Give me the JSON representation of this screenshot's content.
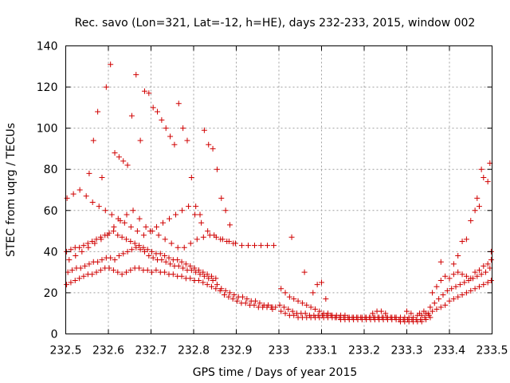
{
  "chart_data": {
    "type": "scatter",
    "title": "Rec. savo (Lon=321, Lat=-12, h=HE), days 232-233, 2015, window 002",
    "xlabel": "GPS time / Days of year 2015",
    "ylabel": "STEC from uqrg / TECUs",
    "xlim": [
      232.5,
      233.5
    ],
    "ylim": [
      0,
      140
    ],
    "xticks": [
      "232.5",
      "232.6",
      "232.7",
      "232.8",
      "232.9",
      "233",
      "233.1",
      "233.2",
      "233.3",
      "233.4",
      "233.5"
    ],
    "yticks": [
      "0",
      "20",
      "40",
      "60",
      "80",
      "100",
      "120",
      "140"
    ],
    "grid": true,
    "marker": "+",
    "marker_color": "#d00000",
    "series": [
      {
        "x": [
          232.502,
          232.512,
          232.522,
          232.532,
          232.542,
          232.552,
          232.562,
          232.572,
          232.582,
          232.592,
          232.602,
          232.612,
          232.622,
          232.632,
          232.642,
          232.652,
          232.662,
          232.672,
          232.682,
          232.692,
          232.702,
          232.712,
          232.722,
          232.732,
          232.742,
          232.752,
          232.762,
          232.772,
          232.782,
          232.792,
          232.802,
          232.812,
          232.822,
          232.832,
          232.842,
          232.852,
          232.862,
          232.872,
          232.882,
          232.892,
          232.902,
          232.912,
          232.922,
          232.932,
          232.942,
          232.952,
          232.962,
          232.972,
          232.982,
          232.992
        ],
        "y": [
          24,
          25,
          26,
          27,
          28,
          29,
          29,
          30,
          31,
          32,
          32,
          31,
          30,
          29,
          30,
          31,
          32,
          32,
          31,
          31,
          30,
          31,
          30,
          30,
          29,
          29,
          28,
          28,
          27,
          27,
          26,
          26,
          25,
          24,
          23,
          22,
          21,
          19,
          18,
          17,
          16,
          15,
          15,
          14,
          14,
          13,
          13,
          13,
          13,
          13
        ]
      },
      {
        "x": [
          232.505,
          232.515,
          232.525,
          232.535,
          232.545,
          232.555,
          232.565,
          232.575,
          232.585,
          232.595,
          232.605,
          232.615,
          232.625,
          232.635,
          232.645,
          232.655,
          232.665,
          232.675,
          232.685,
          232.695,
          232.705,
          232.715,
          232.725,
          232.735,
          232.745,
          232.755,
          232.765,
          232.775,
          232.785,
          232.795,
          232.805,
          232.815,
          232.825,
          232.835,
          232.845,
          232.855,
          232.865,
          232.875,
          232.885,
          232.895,
          232.905,
          232.915,
          232.925,
          232.935,
          232.945,
          232.955,
          232.965,
          232.975,
          232.985
        ],
        "y": [
          30,
          31,
          32,
          32,
          33,
          34,
          35,
          35,
          36,
          37,
          37,
          36,
          38,
          39,
          40,
          41,
          42,
          41,
          40,
          38,
          37,
          36,
          36,
          35,
          34,
          33,
          33,
          32,
          31,
          31,
          30,
          29,
          28,
          27,
          26,
          24,
          22,
          21,
          20,
          19,
          18,
          18,
          17,
          16,
          16,
          15,
          14,
          14,
          13
        ]
      },
      {
        "x": [
          232.502,
          232.512,
          232.522,
          232.532,
          232.542,
          232.552,
          232.562,
          232.572,
          232.582,
          232.592,
          232.602,
          232.612,
          232.622,
          232.632,
          232.642,
          232.652,
          232.662,
          232.672,
          232.682,
          232.692,
          232.702,
          232.712,
          232.722,
          232.732,
          232.742,
          232.752,
          232.762,
          232.772,
          232.782,
          232.792,
          232.802,
          232.812,
          232.822,
          232.832,
          232.842,
          232.852
        ],
        "y": [
          40,
          41,
          42,
          42,
          43,
          44,
          45,
          46,
          47,
          48,
          49,
          50,
          48,
          47,
          46,
          45,
          44,
          43,
          42,
          41,
          40,
          39,
          39,
          38,
          37,
          36,
          36,
          35,
          34,
          33,
          32,
          31,
          30,
          29,
          28,
          27
        ]
      },
      {
        "x": [
          232.508,
          232.523,
          232.538,
          232.553,
          232.568,
          232.583,
          232.598,
          232.613,
          232.628,
          232.643,
          232.658,
          232.673,
          232.688,
          232.703,
          232.718,
          232.733,
          232.748,
          232.763,
          232.778,
          232.793,
          232.808,
          232.823,
          232.838,
          232.853,
          232.868,
          232.883,
          232.898,
          232.913,
          232.928,
          232.943,
          232.958,
          232.973,
          232.988
        ],
        "y": [
          36,
          38,
          40,
          42,
          44,
          46,
          48,
          52,
          55,
          58,
          60,
          56,
          52,
          50,
          48,
          46,
          44,
          42,
          42,
          44,
          46,
          47,
          48,
          47,
          46,
          45,
          44,
          43,
          43,
          43,
          43,
          43,
          43
        ]
      },
      {
        "x": [
          232.503,
          232.518,
          232.533,
          232.548,
          232.563,
          232.578,
          232.593,
          232.608,
          232.623,
          232.638,
          232.653,
          232.668,
          232.683,
          232.698,
          232.713,
          232.728,
          232.743,
          232.758,
          232.773,
          232.788,
          232.803,
          232.818,
          232.833,
          232.848,
          232.863,
          232.878,
          232.893
        ],
        "y": [
          66,
          68,
          70,
          67,
          64,
          62,
          60,
          58,
          56,
          54,
          52,
          50,
          48,
          50,
          52,
          54,
          56,
          58,
          60,
          62,
          58,
          54,
          50,
          48,
          46,
          45,
          44
        ]
      },
      {
        "x": [
          232.555,
          232.565,
          232.575,
          232.585,
          232.595,
          232.605,
          232.615,
          232.625,
          232.635,
          232.645,
          232.655,
          232.665,
          232.675,
          232.685,
          232.695,
          232.705,
          232.715,
          232.725,
          232.735,
          232.745,
          232.755,
          232.765,
          232.775,
          232.785,
          232.795,
          232.805,
          232.815,
          232.825,
          232.835,
          232.845,
          232.855,
          232.865,
          232.875,
          232.885
        ],
        "y": [
          78,
          94,
          108,
          76,
          120,
          131,
          88,
          86,
          84,
          82,
          106,
          126,
          94,
          118,
          117,
          110,
          108,
          104,
          100,
          96,
          92,
          112,
          100,
          94,
          76,
          62,
          58,
          99,
          92,
          90,
          80,
          66,
          60,
          53
        ]
      },
      {
        "x": [
          232.985,
          233.005,
          233.015,
          233.025,
          233.035,
          233.045,
          233.055,
          233.065,
          233.075,
          233.085,
          233.095,
          233.105,
          233.115,
          233.125,
          233.135,
          233.145,
          233.155,
          233.165,
          233.175,
          233.185,
          233.195,
          233.205,
          233.215,
          233.225,
          233.235,
          233.245,
          233.255,
          233.265,
          233.275,
          233.285,
          233.295,
          233.305,
          233.315,
          233.325,
          233.335,
          233.345,
          233.355
        ],
        "y": [
          12,
          11,
          10,
          9,
          9,
          8,
          8,
          8,
          8,
          8,
          8,
          8,
          8,
          8,
          8,
          7,
          7,
          7,
          7,
          7,
          7,
          7,
          7,
          7,
          7,
          7,
          7,
          7,
          7,
          6,
          6,
          6,
          6,
          6,
          6,
          7,
          8
        ]
      },
      {
        "x": [
          233.002,
          233.012,
          233.022,
          233.032,
          233.042,
          233.052,
          233.062,
          233.072,
          233.082,
          233.092,
          233.102,
          233.112,
          233.122,
          233.132,
          233.142,
          233.152,
          233.162,
          233.172,
          233.182,
          233.192,
          233.202,
          233.212,
          233.222,
          233.232,
          233.242,
          233.252,
          233.262,
          233.272,
          233.282,
          233.292,
          233.302,
          233.312,
          233.322,
          233.332,
          233.342,
          233.352
        ],
        "y": [
          14,
          13,
          12,
          11,
          10,
          10,
          10,
          9,
          9,
          9,
          9,
          9,
          9,
          8,
          8,
          8,
          8,
          8,
          8,
          8,
          8,
          8,
          8,
          8,
          8,
          8,
          8,
          8,
          7,
          7,
          7,
          7,
          7,
          7,
          8,
          9
        ]
      },
      {
        "x": [
          233.005,
          233.015,
          233.025,
          233.035,
          233.045,
          233.055,
          233.065,
          233.075,
          233.085,
          233.095,
          233.105,
          233.115,
          233.125,
          233.135,
          233.145,
          233.155,
          233.165,
          233.175,
          233.185,
          233.195,
          233.205,
          233.215,
          233.225,
          233.235,
          233.245,
          233.255,
          233.265,
          233.275,
          233.285,
          233.295,
          233.305,
          233.315,
          233.325,
          233.335,
          233.345
        ],
        "y": [
          22,
          20,
          18,
          17,
          16,
          15,
          14,
          13,
          12,
          11,
          10,
          10,
          9,
          9,
          9,
          9,
          8,
          8,
          8,
          8,
          8,
          8,
          8,
          8,
          8,
          8,
          8,
          8,
          8,
          8,
          8,
          8,
          9,
          9,
          10
        ]
      },
      {
        "x": [
          233.03,
          233.06,
          233.08,
          233.09,
          233.1,
          233.11,
          233.22,
          233.23,
          233.24,
          233.25,
          233.3,
          233.31,
          233.33,
          233.34
        ],
        "y": [
          47,
          30,
          20,
          24,
          25,
          17,
          10,
          11,
          11,
          10,
          11,
          10,
          10,
          11
        ]
      },
      {
        "x": [
          233.35,
          233.36,
          233.37,
          233.38,
          233.39,
          233.4,
          233.41,
          233.42,
          233.43,
          233.44,
          233.45,
          233.46,
          233.47,
          233.48,
          233.49,
          233.498
        ],
        "y": [
          10,
          11,
          12,
          13,
          14,
          16,
          17,
          18,
          19,
          20,
          21,
          22,
          23,
          24,
          25,
          26
        ]
      },
      {
        "x": [
          233.355,
          233.365,
          233.375,
          233.385,
          233.395,
          233.405,
          233.415,
          233.425,
          233.435,
          233.445,
          233.455,
          233.465,
          233.475,
          233.485,
          233.495
        ],
        "y": [
          13,
          15,
          17,
          19,
          21,
          22,
          23,
          24,
          25,
          26,
          27,
          28,
          29,
          30,
          32
        ]
      },
      {
        "x": [
          233.36,
          233.37,
          233.38,
          233.39,
          233.4,
          233.41,
          233.42,
          233.43,
          233.44,
          233.45,
          233.46,
          233.47,
          233.48,
          233.49,
          233.498
        ],
        "y": [
          20,
          23,
          26,
          28,
          27,
          29,
          30,
          29,
          28,
          27,
          30,
          31,
          33,
          34,
          36
        ]
      },
      {
        "x": [
          233.38,
          233.41,
          233.42,
          233.43,
          233.44,
          233.45,
          233.46,
          233.465,
          233.47,
          233.475,
          233.48,
          233.49,
          233.495,
          233.498
        ],
        "y": [
          35,
          34,
          38,
          45,
          46,
          55,
          60,
          66,
          62,
          80,
          76,
          74,
          83,
          40
        ]
      }
    ]
  }
}
